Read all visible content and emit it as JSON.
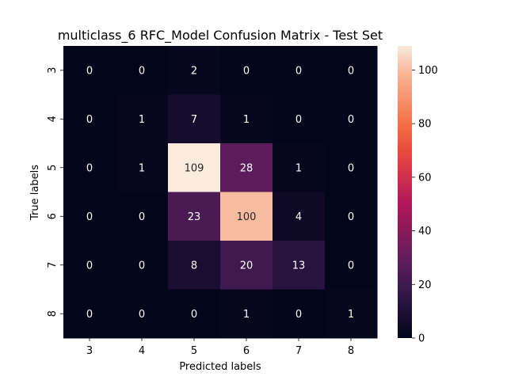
{
  "chart_data": {
    "type": "heatmap",
    "title": "multiclass_6 RFC_Model Confusion Matrix - Test Set",
    "xlabel": "Predicted labels",
    "ylabel": "True labels",
    "x_categories": [
      "3",
      "4",
      "5",
      "6",
      "7",
      "8"
    ],
    "y_categories": [
      "3",
      "4",
      "5",
      "6",
      "7",
      "8"
    ],
    "values": [
      [
        0,
        0,
        2,
        0,
        0,
        0
      ],
      [
        0,
        1,
        7,
        1,
        0,
        0
      ],
      [
        0,
        1,
        109,
        28,
        1,
        0
      ],
      [
        0,
        0,
        23,
        100,
        4,
        0
      ],
      [
        0,
        0,
        8,
        20,
        13,
        0
      ],
      [
        0,
        0,
        0,
        1,
        0,
        1
      ]
    ],
    "colorbar": {
      "min": 0,
      "max": 109,
      "ticks": [
        "0",
        "20",
        "40",
        "60",
        "80",
        "100"
      ],
      "colormap": "rocket",
      "colors": [
        "#03051a",
        "#1e1036",
        "#3e1a4f",
        "#621c5d",
        "#881a59",
        "#ae1759",
        "#cf2e4e",
        "#e74a3f",
        "#f26e44",
        "#f6926e",
        "#f7b699",
        "#faebdd"
      ]
    },
    "annotation_light_threshold": 60
  }
}
